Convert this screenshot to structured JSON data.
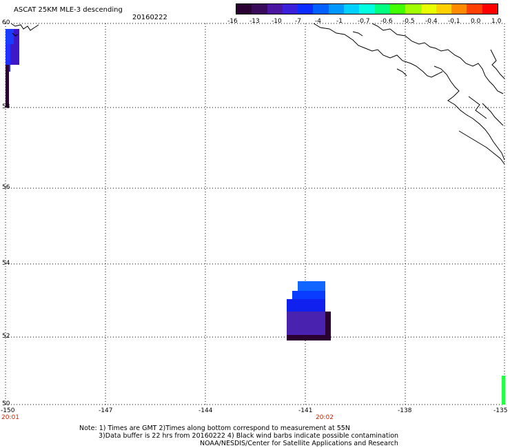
{
  "header": {
    "title": "ASCAT 25KM MLE-3 descending",
    "date": "20160222"
  },
  "colorbar": {
    "colors": [
      "#2a0033",
      "#3a0a5a",
      "#4a16a0",
      "#3a20d8",
      "#0a2cff",
      "#0060ff",
      "#0098ff",
      "#00d0ff",
      "#00ffe0",
      "#00ff80",
      "#40ff00",
      "#a0ff00",
      "#e8ff00",
      "#ffd000",
      "#ff8a00",
      "#ff4000",
      "#ff0000"
    ],
    "labels": [
      "-16",
      "-13",
      "-10",
      "-7",
      "-4",
      "-1",
      "-0.7",
      "-0.6",
      "-0.5",
      "-0.4",
      "-0.1",
      "0.0",
      "1.0"
    ]
  },
  "map": {
    "lon_ticks": [
      "-150",
      "-147",
      "-144",
      "-141",
      "-138",
      "-135"
    ],
    "lat_ticks": [
      "60",
      "58",
      "56",
      "54",
      "52",
      "50"
    ],
    "time_labels": [
      "20:01",
      "20:02"
    ],
    "colors": {
      "grid": "#000000",
      "time": "#cc2200",
      "coast": "#000000"
    }
  },
  "notes": {
    "line1": "Note: 1) Times are GMT 2)Times along bottom correspond to measurement at 55N",
    "line2": "3)Data buffer is 22 hrs from 20160222 4) Black wind barbs indicate possible contamination",
    "line3": "NOAA/NESDIS/Center for Satellite Applications and Research"
  }
}
